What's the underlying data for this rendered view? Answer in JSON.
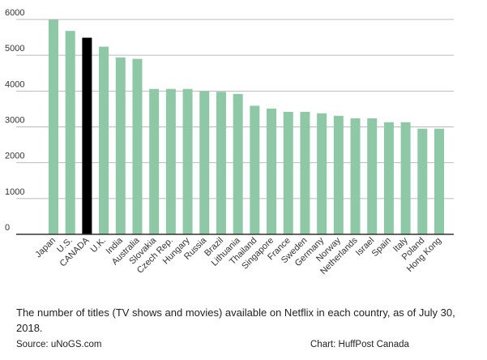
{
  "chart_data": {
    "type": "bar",
    "caption": "The number of titles (TV shows and movies) available on Netflix in each country, as of July 30, 2018.",
    "source": "Source: uNoGS.com",
    "credit": "Chart: HuffPost Canada",
    "categories": [
      "Japan",
      "U.S.",
      "CANADA",
      "U.K.",
      "India",
      "Australia",
      "Slovakia",
      "Czech Rep.",
      "Hungary",
      "Russia",
      "Brazil",
      "Lithuania",
      "Thailand",
      "Singapore",
      "France",
      "Sweden",
      "Germany",
      "Norway",
      "Netherlands",
      "Israel",
      "Spain",
      "Italy",
      "Poland",
      "Hong Kong"
    ],
    "values": [
      5990,
      5680,
      5490,
      5240,
      4940,
      4900,
      4060,
      4060,
      4060,
      4000,
      3980,
      3920,
      3590,
      3510,
      3420,
      3420,
      3380,
      3310,
      3240,
      3240,
      3130,
      3130,
      2950,
      2950
    ],
    "colors": [
      "#8fc8a6",
      "#8fc8a6",
      "#000000",
      "#8fc8a6",
      "#8fc8a6",
      "#8fc8a6",
      "#8fc8a6",
      "#8fc8a6",
      "#8fc8a6",
      "#8fc8a6",
      "#8fc8a6",
      "#8fc8a6",
      "#8fc8a6",
      "#8fc8a6",
      "#8fc8a6",
      "#8fc8a6",
      "#8fc8a6",
      "#8fc8a6",
      "#8fc8a6",
      "#8fc8a6",
      "#8fc8a6",
      "#8fc8a6",
      "#8fc8a6",
      "#8fc8a6"
    ],
    "ylim": [
      0,
      6000
    ],
    "yticks": [
      0,
      1000,
      2000,
      3000,
      4000,
      5000,
      6000
    ],
    "grid": true
  }
}
